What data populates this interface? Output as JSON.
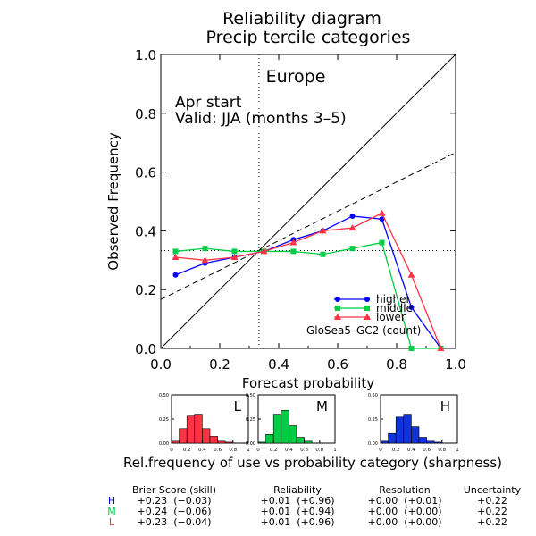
{
  "chart_data": [
    {
      "type": "line",
      "title": "Reliability diagram",
      "subtitle": "Precip tercile categories",
      "region": "Europe",
      "annotations": [
        "Apr start",
        "Valid: JJA (months 3–5)"
      ],
      "xlabel": "Forecast probability",
      "ylabel": "Observed Frequency",
      "xlim": [
        0,
        1
      ],
      "ylim": [
        0,
        1
      ],
      "xticks": [
        "0.0",
        "0.2",
        "0.4",
        "0.6",
        "0.8",
        "1.0"
      ],
      "yticks": [
        "0.0",
        "0.2",
        "0.4",
        "0.6",
        "0.8",
        "1.0"
      ],
      "climatology": 0.333,
      "legend_position": "bottom-right",
      "source_label": "GloSea5–GC2 (count)",
      "series": [
        {
          "name": "higher",
          "color": "#0000ff",
          "marker": "circle",
          "x": [
            0.05,
            0.15,
            0.25,
            0.35,
            0.45,
            0.55,
            0.65,
            0.75,
            0.85,
            0.95
          ],
          "y": [
            0.25,
            0.29,
            0.31,
            0.33,
            0.37,
            0.4,
            0.45,
            0.44,
            0.14,
            0.0
          ]
        },
        {
          "name": "middle",
          "color": "#00cc44",
          "marker": "square",
          "x": [
            0.05,
            0.15,
            0.25,
            0.35,
            0.45,
            0.55,
            0.65,
            0.75,
            0.85,
            0.95
          ],
          "y": [
            0.33,
            0.34,
            0.33,
            0.33,
            0.33,
            0.32,
            0.34,
            0.36,
            0.0,
            0.0
          ]
        },
        {
          "name": "lower",
          "color": "#ff3344",
          "marker": "triangle",
          "x": [
            0.05,
            0.15,
            0.25,
            0.35,
            0.45,
            0.55,
            0.65,
            0.75,
            0.85,
            0.95
          ],
          "y": [
            0.31,
            0.3,
            0.31,
            0.33,
            0.36,
            0.4,
            0.41,
            0.46,
            0.25,
            0.0
          ]
        }
      ]
    },
    {
      "type": "bar",
      "caption": "Rel.frequency of use vs probability category (sharpness)",
      "ylim": [
        0,
        0.5
      ],
      "xticks": [
        "0",
        "0.2",
        "0.4",
        "0.6",
        "0.8",
        "1"
      ],
      "yticks": [
        "0.50",
        "0.25",
        "0.00"
      ],
      "categories": [
        0.05,
        0.15,
        0.25,
        0.35,
        0.45,
        0.55,
        0.65,
        0.75,
        0.85,
        0.95
      ],
      "panels": [
        {
          "label": "L",
          "color": "#ff3344",
          "values": [
            0.02,
            0.15,
            0.28,
            0.3,
            0.15,
            0.07,
            0.02,
            0.01,
            0.0,
            0.0
          ]
        },
        {
          "label": "M",
          "color": "#00cc44",
          "values": [
            0.01,
            0.09,
            0.3,
            0.34,
            0.18,
            0.06,
            0.02,
            0.0,
            0.0,
            0.0
          ]
        },
        {
          "label": "H",
          "color": "#1133dd",
          "values": [
            0.02,
            0.1,
            0.27,
            0.3,
            0.17,
            0.06,
            0.02,
            0.01,
            0.0,
            0.0
          ]
        }
      ]
    },
    {
      "type": "table",
      "headers": [
        "Brier Score (skill)",
        "Reliability",
        "Resolution",
        "Uncertainty"
      ],
      "rows": [
        {
          "label": "H",
          "color": "#0000ff",
          "cells": [
            "+0.23  (−0.03)",
            "+0.01  (+0.96)",
            "+0.00  (+0.01)",
            "+0.22"
          ]
        },
        {
          "label": "M",
          "color": "#00cc44",
          "cells": [
            "+0.24  (−0.06)",
            "+0.01  (+0.94)",
            "+0.00  (+0.00)",
            "+0.22"
          ]
        },
        {
          "label": "L",
          "color": "#ff3344",
          "cells": [
            "+0.23  (−0.04)",
            "+0.01  (+0.96)",
            "+0.00  (+0.00)",
            "+0.22"
          ]
        }
      ]
    }
  ]
}
